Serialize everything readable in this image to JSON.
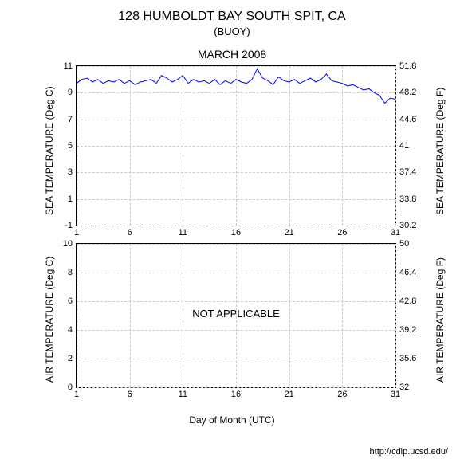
{
  "header": {
    "title": "128 HUMBOLDT BAY SOUTH SPIT, CA",
    "subtitle": "(BUOY)",
    "month": "MARCH 2008"
  },
  "sea_temp_chart": {
    "type": "line",
    "ylabel_left": "SEA TEMPERATURE (Deg C)",
    "ylabel_right": "SEA TEMPERATURE (Deg F)",
    "xlim": [
      1,
      31
    ],
    "ylim_c": [
      -1,
      11
    ],
    "ylim_f": [
      30.2,
      51.8
    ],
    "xticks": [
      1,
      6,
      11,
      16,
      21,
      26,
      31
    ],
    "yticks_c": [
      -1,
      1,
      3,
      5,
      7,
      9,
      11
    ],
    "yticks_f": [
      30.2,
      33.8,
      37.4,
      41,
      44.6,
      48.2,
      51.8
    ],
    "line_color": "#0000ff",
    "grid_color": "#cccccc",
    "background_color": "#ffffff",
    "series_x": [
      1,
      1.5,
      2,
      2.5,
      3,
      3.5,
      4,
      4.5,
      5,
      5.5,
      6,
      6.5,
      7,
      7.5,
      8,
      8.5,
      9,
      9.5,
      10,
      10.5,
      11,
      11.5,
      12,
      12.5,
      13,
      13.5,
      14,
      14.5,
      15,
      15.5,
      16,
      16.5,
      17,
      17.5,
      18,
      18.5,
      19,
      19.5,
      20,
      20.5,
      21,
      21.5,
      22,
      22.5,
      23,
      23.5,
      24,
      24.5,
      25,
      25.5,
      26,
      26.5,
      27,
      27.5,
      28,
      28.5,
      29,
      29.5,
      30,
      30.5,
      31
    ],
    "series_y": [
      9.7,
      10.0,
      10.1,
      9.8,
      10.0,
      9.7,
      9.9,
      9.8,
      10.0,
      9.7,
      9.9,
      9.6,
      9.8,
      9.9,
      10.0,
      9.7,
      10.3,
      10.1,
      9.8,
      10.0,
      10.3,
      9.7,
      10.0,
      9.8,
      9.9,
      9.7,
      10.0,
      9.6,
      9.9,
      9.7,
      10.0,
      9.8,
      9.7,
      10.0,
      10.8,
      10.1,
      9.9,
      9.6,
      10.2,
      9.9,
      9.8,
      10.0,
      9.7,
      9.9,
      10.1,
      9.8,
      10.0,
      10.4,
      9.9,
      9.8,
      9.7,
      9.5,
      9.6,
      9.4,
      9.2,
      9.3,
      9.0,
      8.8,
      8.2,
      8.6,
      8.5
    ]
  },
  "air_temp_chart": {
    "type": "line",
    "ylabel_left": "AIR TEMPERATURE (Deg C)",
    "ylabel_right": "AIR TEMPERATURE (Deg F)",
    "xlim": [
      1,
      31
    ],
    "ylim_c": [
      0,
      10
    ],
    "ylim_f": [
      32,
      50
    ],
    "xticks": [
      1,
      6,
      11,
      16,
      21,
      26,
      31
    ],
    "yticks_c": [
      0,
      2,
      4,
      6,
      8,
      10
    ],
    "yticks_f": [
      32,
      35.6,
      39.2,
      42.8,
      46.4,
      50
    ],
    "grid_color": "#cccccc",
    "background_color": "#ffffff",
    "overlay_text": "NOT APPLICABLE"
  },
  "xlabel": "Day of Month (UTC)",
  "footer_url": "http://cdip.ucsd.edu/"
}
